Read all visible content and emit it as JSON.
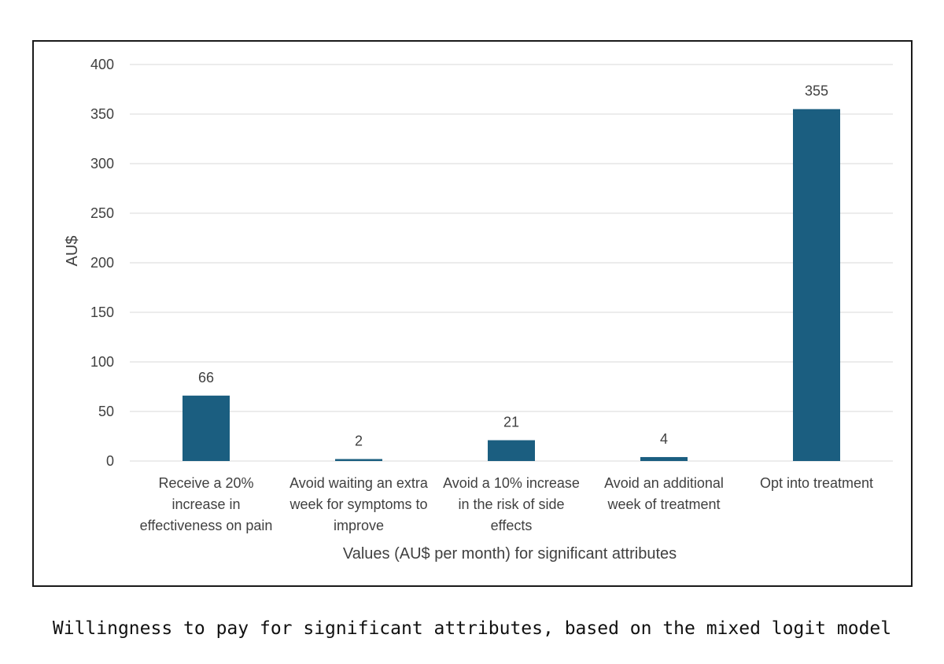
{
  "caption": "Willingness to pay for significant attributes, based on the mixed logit model",
  "colors": {
    "bar": "#1b5e80",
    "grid": "#d9d9d9",
    "text": "#404040"
  },
  "chart_data": {
    "type": "bar",
    "categories": [
      [
        "Receive a 20%",
        "increase in",
        "effectiveness on pain"
      ],
      [
        "Avoid waiting an extra",
        "week for symptoms to",
        "improve"
      ],
      [
        "Avoid a 10% increase",
        "in the risk of side",
        "effects"
      ],
      [
        "Avoid an additional",
        "week of treatment"
      ],
      [
        "Opt into treatment"
      ]
    ],
    "values": [
      66,
      2,
      21,
      4,
      355
    ],
    "data_labels": [
      "66",
      "2",
      "21",
      "4",
      "355"
    ],
    "xlabel": "Values (AU$ per month) for  significant attributes",
    "ylabel": "AU$",
    "ylim": [
      0,
      400
    ],
    "yticks": [
      0,
      50,
      100,
      150,
      200,
      250,
      300,
      350,
      400
    ],
    "grid": true
  }
}
